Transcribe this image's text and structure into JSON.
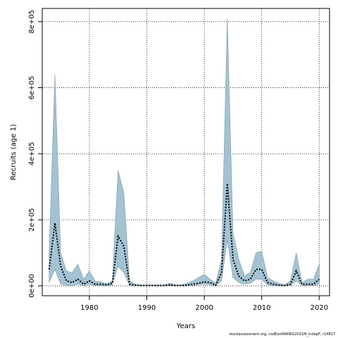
{
  "chart_data": {
    "type": "line",
    "xlabel": "Years",
    "ylabel": "Recruits (age 1)",
    "xlim": [
      1971.8,
      2021.8
    ],
    "ylim": [
      -30000,
      840000
    ],
    "xticks": [
      1980,
      1990,
      2000,
      2010,
      2020
    ],
    "xtick_labels": [
      "1980",
      "1990",
      "2000",
      "2010",
      "2020"
    ],
    "yticks": [
      0,
      200000,
      400000,
      600000,
      800000
    ],
    "ytick_labels": [
      "0e+00",
      "2e+05",
      "4e+05",
      "6e+05",
      "8e+05"
    ],
    "grid": true,
    "colors": {
      "band_fill": "#a3c3d3",
      "band_edge": "#7f96a2",
      "median_line": "#000000",
      "grid": "#000000"
    },
    "x": [
      1973,
      1974,
      1975,
      1976,
      1977,
      1978,
      1979,
      1980,
      1981,
      1982,
      1983,
      1984,
      1985,
      1986,
      1987,
      1988,
      1989,
      1990,
      1991,
      1992,
      1993,
      1994,
      1995,
      1996,
      1997,
      1998,
      1999,
      2000,
      2001,
      2002,
      2003,
      2004,
      2005,
      2006,
      2007,
      2008,
      2009,
      2010,
      2011,
      2012,
      2013,
      2014,
      2015,
      2016,
      2017,
      2018,
      2019,
      2020
    ],
    "series": [
      {
        "role": "median",
        "values": [
          50000,
          190000,
          60000,
          15000,
          10000,
          20000,
          5000,
          15000,
          5000,
          5000,
          3000,
          8000,
          150000,
          120000,
          5000,
          2000,
          1000,
          1000,
          1000,
          1000,
          1000,
          3000,
          1000,
          1000,
          2000,
          5000,
          8000,
          12000,
          10000,
          2000,
          40000,
          310000,
          80000,
          30000,
          15000,
          20000,
          50000,
          50000,
          10000,
          5000,
          2000,
          1000,
          5000,
          45000,
          5000,
          5000,
          5000,
          20000
        ]
      },
      {
        "role": "upper",
        "values": [
          100000,
          640000,
          100000,
          45000,
          40000,
          65000,
          20000,
          45000,
          15000,
          12000,
          6000,
          15000,
          350000,
          280000,
          15000,
          5000,
          3000,
          3000,
          3000,
          3000,
          3000,
          8000,
          3000,
          3000,
          8000,
          15000,
          25000,
          35000,
          20000,
          8000,
          80000,
          810000,
          160000,
          80000,
          30000,
          40000,
          100000,
          105000,
          25000,
          15000,
          8000,
          3000,
          15000,
          100000,
          10000,
          20000,
          20000,
          65000
        ]
      },
      {
        "role": "lower",
        "values": [
          10000,
          50000,
          5000,
          2000,
          1000,
          5000,
          1000,
          5000,
          1000,
          1000,
          500,
          2000,
          60000,
          40000,
          1000,
          500,
          200,
          200,
          200,
          200,
          200,
          500,
          200,
          200,
          500,
          1000,
          3000,
          5000,
          3000,
          500,
          15000,
          140000,
          25000,
          10000,
          5000,
          8000,
          20000,
          20000,
          3000,
          1000,
          500,
          200,
          1000,
          15000,
          1000,
          1000,
          1000,
          5000
        ]
      }
    ]
  },
  "source_note": "stockassessment.org, codEastNWWG2021M_IndepF, r14817"
}
